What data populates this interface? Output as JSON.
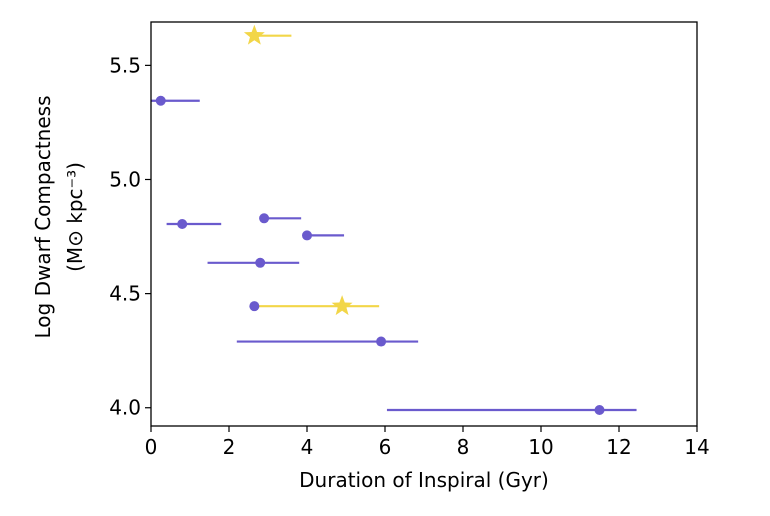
{
  "chart_data": {
    "type": "scatter",
    "xlabel": "Duration of Inspiral (Gyr)",
    "ylabel_line1": "Log Dwarf Compactness",
    "ylabel_line2": "(M⊙ kpc⁻³)",
    "xlim": [
      0,
      14
    ],
    "ylim": [
      3.92,
      5.69
    ],
    "xticks": [
      {
        "value": 0,
        "label": "0"
      },
      {
        "value": 2,
        "label": "2"
      },
      {
        "value": 4,
        "label": "4"
      },
      {
        "value": 6,
        "label": "6"
      },
      {
        "value": 8,
        "label": "8"
      },
      {
        "value": 10,
        "label": "10"
      },
      {
        "value": 12,
        "label": "12"
      },
      {
        "value": 14,
        "label": "14"
      }
    ],
    "yticks": [
      {
        "value": 4.0,
        "label": "4.0"
      },
      {
        "value": 4.5,
        "label": "4.5"
      },
      {
        "value": 5.0,
        "label": "5.0"
      },
      {
        "value": 5.5,
        "label": "5.5"
      }
    ],
    "grid": false,
    "colors": {
      "blue": "#6a5acd",
      "yellow": "#f2d648"
    },
    "series": [
      {
        "color": "#6a5acd",
        "marker": "circle",
        "points": [
          {
            "x": 0.25,
            "y": 5.345,
            "xmin": 0.0,
            "xmax": 1.25
          },
          {
            "x": 0.8,
            "y": 4.805,
            "xmin": 0.4,
            "xmax": 1.8
          },
          {
            "x": 2.9,
            "y": 4.83,
            "xmin": 2.8,
            "xmax": 3.85
          },
          {
            "x": 4.0,
            "y": 4.755,
            "xmin": 3.9,
            "xmax": 4.95
          },
          {
            "x": 2.8,
            "y": 4.635,
            "xmin": 1.45,
            "xmax": 3.8
          },
          {
            "x": 2.65,
            "y": 4.445,
            "xmin": null,
            "xmax": null
          },
          {
            "x": 5.9,
            "y": 4.29,
            "xmin": 2.2,
            "xmax": 6.85
          },
          {
            "x": 11.5,
            "y": 3.99,
            "xmin": 6.05,
            "xmax": 12.45
          }
        ]
      },
      {
        "color": "#f2d648",
        "marker": "star",
        "points": [
          {
            "x": 2.65,
            "y": 5.63,
            "xmin": 2.55,
            "xmax": 3.6
          },
          {
            "x": 4.9,
            "y": 4.445,
            "xmin": 2.65,
            "xmax": 5.85
          }
        ]
      }
    ]
  }
}
